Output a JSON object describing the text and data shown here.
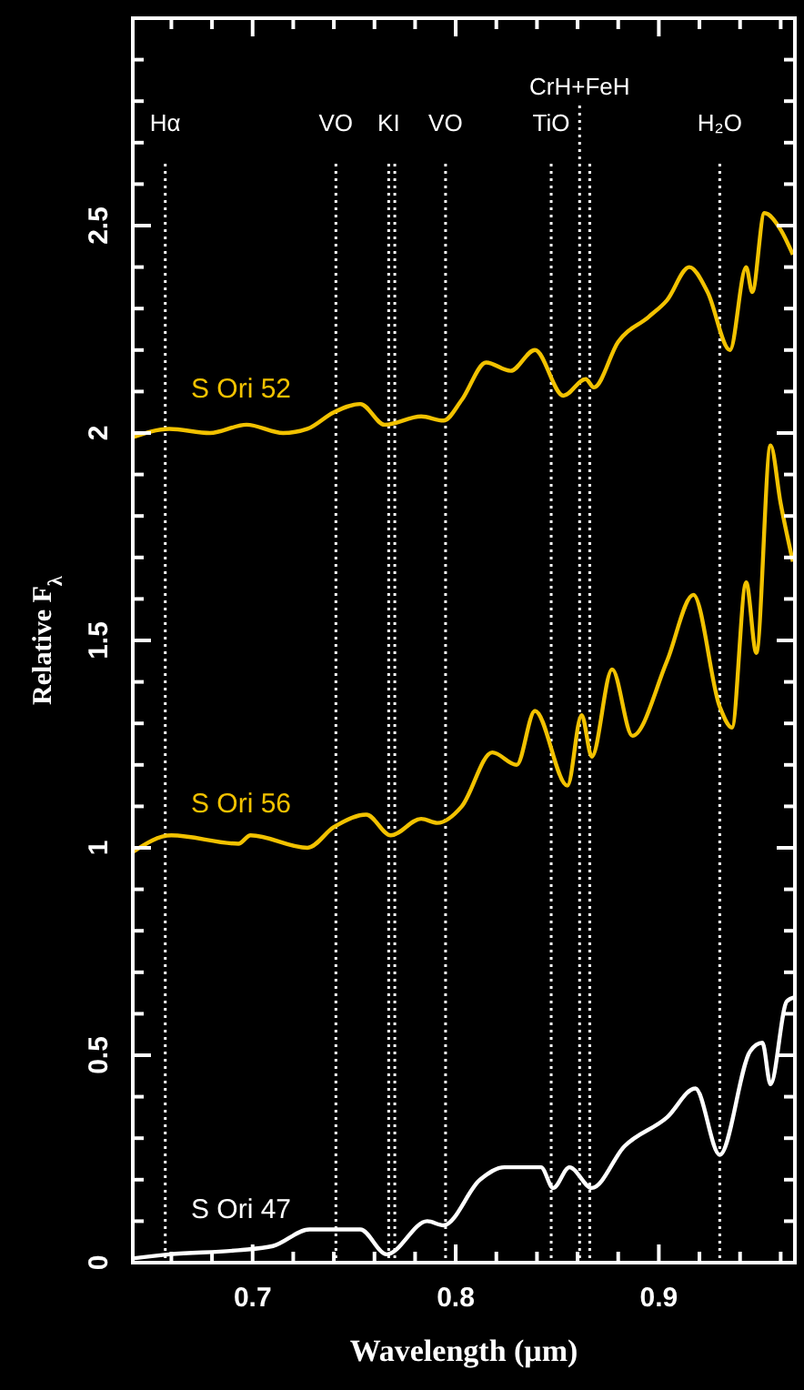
{
  "chart_data": {
    "type": "line",
    "xlabel": "Wavelength (μm)",
    "ylabel": "Relative F$_{λ}$",
    "xlim": [
      0.641,
      0.967
    ],
    "ylim": [
      0,
      3
    ],
    "xticks": [
      {
        "value": 0.66,
        "label": null
      },
      {
        "value": 0.68,
        "label": null
      },
      0.7,
      {
        "value": 0.72,
        "label": null
      },
      {
        "value": 0.74,
        "label": null
      },
      {
        "value": 0.76,
        "label": null
      },
      {
        "value": 0.78,
        "label": null
      },
      0.8,
      {
        "value": 0.82,
        "label": null
      },
      {
        "value": 0.84,
        "label": null
      },
      {
        "value": 0.86,
        "label": null
      },
      {
        "value": 0.88,
        "label": null
      },
      0.9,
      {
        "value": 0.92,
        "label": null
      },
      {
        "value": 0.94,
        "label": null
      },
      {
        "value": 0.96,
        "label": null
      }
    ],
    "yticks": [
      0,
      {
        "value": 0.1,
        "label": null
      },
      {
        "value": 0.2,
        "label": null
      },
      {
        "value": 0.3,
        "label": null
      },
      {
        "value": 0.4,
        "label": null
      },
      0.5,
      {
        "value": 0.6,
        "label": null
      },
      {
        "value": 0.7,
        "label": null
      },
      {
        "value": 0.8,
        "label": null
      },
      {
        "value": 0.9,
        "label": null
      },
      1,
      {
        "value": 1.1,
        "label": null
      },
      {
        "value": 1.2,
        "label": null
      },
      {
        "value": 1.3,
        "label": null
      },
      {
        "value": 1.4,
        "label": null
      },
      1.5,
      {
        "value": 1.6,
        "label": null
      },
      {
        "value": 1.7,
        "label": null
      },
      {
        "value": 1.8,
        "label": null
      },
      {
        "value": 1.9,
        "label": null
      },
      2,
      {
        "value": 2.1,
        "label": null
      },
      {
        "value": 2.2,
        "label": null
      },
      {
        "value": 2.3,
        "label": null
      },
      {
        "value": 2.4,
        "label": null
      },
      2.5,
      {
        "value": 2.6,
        "label": null
      },
      {
        "value": 2.7,
        "label": null
      },
      {
        "value": 2.8,
        "label": null
      },
      {
        "value": 2.9,
        "label": null
      }
    ],
    "grid": false,
    "line_style": "solid",
    "marker": "none",
    "series": [
      {
        "name": "S Ori 52",
        "color": "#f2c200",
        "x": [
          0.641,
          0.659,
          0.679,
          0.697,
          0.715,
          0.727,
          0.74,
          0.753,
          0.765,
          0.783,
          0.794,
          0.803,
          0.815,
          0.827,
          0.839,
          0.853,
          0.864,
          0.868,
          0.88,
          0.895,
          0.904,
          0.915,
          0.924,
          0.935,
          0.943,
          0.946,
          0.952,
          0.96,
          0.966
        ],
        "values": [
          1.99,
          2.01,
          2.0,
          2.02,
          2.0,
          2.01,
          2.05,
          2.07,
          2.02,
          2.04,
          2.03,
          2.08,
          2.17,
          2.15,
          2.2,
          2.09,
          2.13,
          2.11,
          2.22,
          2.28,
          2.32,
          2.4,
          2.34,
          2.2,
          2.4,
          2.34,
          2.53,
          2.49,
          2.43
        ]
      },
      {
        "name": "S Ori 56",
        "color": "#f2c200",
        "x": [
          0.641,
          0.66,
          0.693,
          0.699,
          0.727,
          0.74,
          0.756,
          0.768,
          0.783,
          0.791,
          0.803,
          0.818,
          0.83,
          0.839,
          0.855,
          0.862,
          0.867,
          0.877,
          0.887,
          0.904,
          0.917,
          0.93,
          0.936,
          0.943,
          0.948,
          0.955,
          0.96,
          0.966
        ],
        "values": [
          0.99,
          1.03,
          1.01,
          1.03,
          1.0,
          1.05,
          1.08,
          1.03,
          1.07,
          1.06,
          1.1,
          1.23,
          1.2,
          1.33,
          1.15,
          1.32,
          1.22,
          1.43,
          1.27,
          1.45,
          1.61,
          1.34,
          1.29,
          1.64,
          1.47,
          1.97,
          1.83,
          1.69
        ]
      },
      {
        "name": "S Ori 47",
        "color": "#ffffff",
        "x": [
          0.641,
          0.659,
          0.693,
          0.71,
          0.728,
          0.753,
          0.766,
          0.786,
          0.794,
          0.812,
          0.824,
          0.842,
          0.848,
          0.856,
          0.867,
          0.883,
          0.904,
          0.918,
          0.93,
          0.945,
          0.951,
          0.955,
          0.963,
          0.967
        ],
        "values": [
          0.01,
          0.02,
          0.03,
          0.04,
          0.08,
          0.08,
          0.02,
          0.1,
          0.09,
          0.2,
          0.23,
          0.23,
          0.18,
          0.23,
          0.18,
          0.28,
          0.35,
          0.42,
          0.26,
          0.51,
          0.53,
          0.43,
          0.63,
          0.64
        ]
      }
    ],
    "ref_lines": [
      {
        "axis": "x",
        "value": 0.657,
        "label": "Hα",
        "line_style": "dotted",
        "color": "#ffffff"
      },
      {
        "axis": "x",
        "value": 0.741,
        "label": "VO",
        "line_style": "dotted",
        "color": "#ffffff"
      },
      {
        "axis": "x",
        "value": 0.767,
        "label": "KI",
        "line_style": "dotted",
        "color": "#ffffff"
      },
      {
        "axis": "x",
        "value": 0.77,
        "label": null,
        "line_style": "dotted",
        "color": "#ffffff"
      },
      {
        "axis": "x",
        "value": 0.795,
        "label": "VO",
        "line_style": "dotted",
        "color": "#ffffff"
      },
      {
        "axis": "x",
        "value": 0.847,
        "label": "TiO",
        "line_style": "dotted",
        "color": "#ffffff"
      },
      {
        "axis": "x",
        "value": 0.861,
        "label": "CrH+FeH",
        "line_style": "dotted",
        "color": "#ffffff"
      },
      {
        "axis": "x",
        "value": 0.866,
        "label": null,
        "line_style": "dotted",
        "color": "#ffffff"
      },
      {
        "axis": "x",
        "value": 0.93,
        "label": "H₂O",
        "line_style": "dotted",
        "color": "#ffffff"
      }
    ]
  }
}
